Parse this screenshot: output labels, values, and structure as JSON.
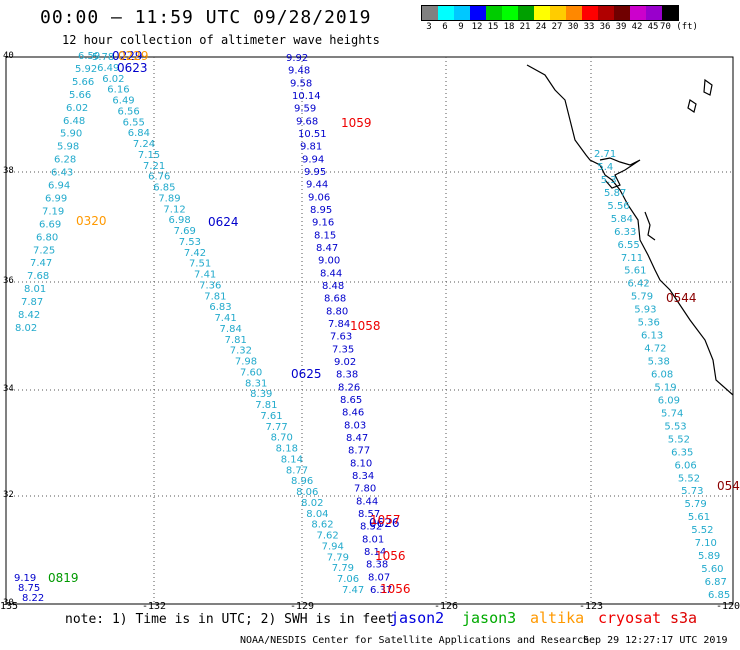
{
  "header": {
    "title": "00:00 – 11:59 UTC 09/28/2019",
    "subtitle": "12 hour collection of altimeter wave heights"
  },
  "legend": {
    "colors": [
      "#808080",
      "#00ffff",
      "#00c8ff",
      "#0000ff",
      "#00cc00",
      "#00ff00",
      "#00a000",
      "#ffff00",
      "#ffcc00",
      "#ff8800",
      "#ff0000",
      "#b00000",
      "#700000",
      "#cc00cc",
      "#9900cc",
      "#000000"
    ],
    "labels": [
      "3",
      "6",
      "9",
      "12",
      "15",
      "18",
      "21",
      "24",
      "27",
      "30",
      "33",
      "36",
      "39",
      "42",
      "45",
      "70 (ft)"
    ]
  },
  "map": {
    "lon_labels": [
      "-135",
      "-132",
      "-129",
      "-126",
      "-123",
      "-120"
    ],
    "lat_labels": [
      "40",
      "38",
      "36",
      "34",
      "32",
      "30"
    ]
  },
  "tracks": [
    {
      "satellite": "jason2",
      "color": "#0000cc",
      "time_labels": [
        "0229",
        "0623",
        "0624",
        "0625",
        "0626"
      ]
    },
    {
      "satellite": "jason3",
      "color": "#009900",
      "time_labels": [
        "0819"
      ]
    },
    {
      "satellite": "altika",
      "color": "#ff9900",
      "time_labels": [
        "0229",
        "0320"
      ]
    },
    {
      "satellite": "cryosat",
      "color": "#ee0000",
      "time_labels": [
        "1059",
        "1058",
        "1057",
        "1056",
        "1056"
      ]
    },
    {
      "satellite": "s3a",
      "color": "#8b0000",
      "time_labels": [
        "0544",
        "054"
      ]
    }
  ],
  "values": {
    "trackA": [
      "6.59",
      "5.92",
      "5.66",
      "5.66",
      "6.02",
      "6.48",
      "5.90",
      "5.98",
      "6.28",
      "6.43",
      "6.94",
      "6.99",
      "7.19",
      "6.69",
      "6.80",
      "7.25",
      "7.47",
      "7.68",
      "8.01",
      "7.87",
      "8.42",
      "8.02"
    ],
    "trackB": [
      "5.78",
      "6.49",
      "6.02",
      "6.16",
      "6.49",
      "6.56",
      "6.55",
      "6.84",
      "7.24",
      "7.15",
      "7.21",
      "6.76",
      "6.85",
      "7.89",
      "7.12",
      "6.98",
      "7.69",
      "7.53",
      "7.42",
      "7.51",
      "7.41",
      "7.36",
      "7.81",
      "6.83",
      "7.41",
      "7.84",
      "7.81",
      "7.32",
      "7.98",
      "7.60",
      "8.31",
      "8.39",
      "7.81",
      "7.61",
      "7.77",
      "8.70",
      "8.18",
      "8.14",
      "8.77",
      "8.96",
      "8.06",
      "8.02",
      "8.04",
      "8.62",
      "7.62",
      "7.94",
      "7.79",
      "7.79",
      "7.06",
      "7.47"
    ],
    "trackC": [
      "9.92",
      "9.48",
      "9.58",
      "10.14",
      "9.59",
      "9.68",
      "10.51",
      "9.81",
      "9.94",
      "9.95",
      "9.44",
      "9.06",
      "8.95",
      "9.16",
      "8.15",
      "8.47",
      "9.00",
      "8.44",
      "8.48",
      "8.68",
      "8.80",
      "7.84",
      "7.63",
      "7.35",
      "9.02",
      "8.38",
      "8.26",
      "8.65",
      "8.46",
      "8.03",
      "8.47",
      "8.77",
      "8.10",
      "8.34",
      "7.80",
      "8.44",
      "8.57",
      "8.52",
      "8.01",
      "8.14",
      "8.38",
      "8.07",
      "6.37"
    ],
    "trackD": [
      "2.71",
      "5.4",
      "5.3",
      "5.87",
      "5.56",
      "5.84",
      "6.33",
      "6.55",
      "7.11",
      "5.61",
      "6.42",
      "5.79",
      "5.93",
      "5.36",
      "6.13",
      "4.72",
      "5.38",
      "6.08",
      "5.19",
      "6.09",
      "5.74",
      "5.53",
      "5.52",
      "6.35",
      "6.06",
      "5.52",
      "5.73",
      "5.79",
      "5.61",
      "5.52",
      "7.10",
      "5.89",
      "5.60",
      "6.87",
      "6.85"
    ],
    "trackE": [
      "9.19",
      "8.75",
      "8.22"
    ]
  },
  "footer": {
    "note": "note: 1) Time is in UTC; 2) SWH is in feet",
    "sats": [
      "jason2",
      "jason3",
      "altika",
      "cryosat",
      "s3a"
    ],
    "sat_colors": [
      "#0000dd",
      "#00aa00",
      "#ff9900",
      "#ee0000",
      "#dd0000"
    ],
    "center": "NOAA/NESDIS Center for Satellite Applications and Research",
    "timestamp": "Sep 29 12:27:17 UTC 2019"
  }
}
